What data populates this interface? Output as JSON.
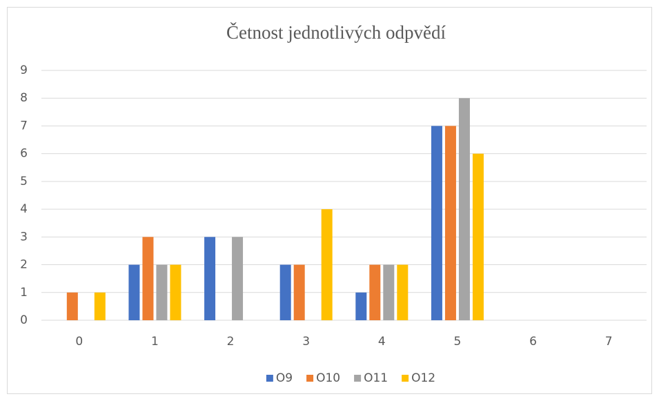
{
  "chart_data": {
    "type": "bar",
    "title": "Četnost jednotlivých odpvědí",
    "categories": [
      "0",
      "1",
      "2",
      "3",
      "4",
      "5",
      "6",
      "7"
    ],
    "series": [
      {
        "name": "O9",
        "color": "#4472c4",
        "values": [
          0,
          2,
          3,
          2,
          1,
          7,
          0,
          0
        ]
      },
      {
        "name": "O10",
        "color": "#ed7d31",
        "values": [
          1,
          3,
          0,
          2,
          2,
          7,
          0,
          0
        ]
      },
      {
        "name": "O11",
        "color": "#a5a5a5",
        "values": [
          0,
          2,
          3,
          0,
          2,
          8,
          0,
          0
        ]
      },
      {
        "name": "O12",
        "color": "#ffc000",
        "values": [
          1,
          2,
          0,
          4,
          2,
          6,
          0,
          0
        ]
      }
    ],
    "ylim": [
      0,
      9
    ],
    "yticks": [
      0,
      1,
      2,
      3,
      4,
      5,
      6,
      7,
      8,
      9
    ],
    "grid": true,
    "legend": "bottom"
  }
}
